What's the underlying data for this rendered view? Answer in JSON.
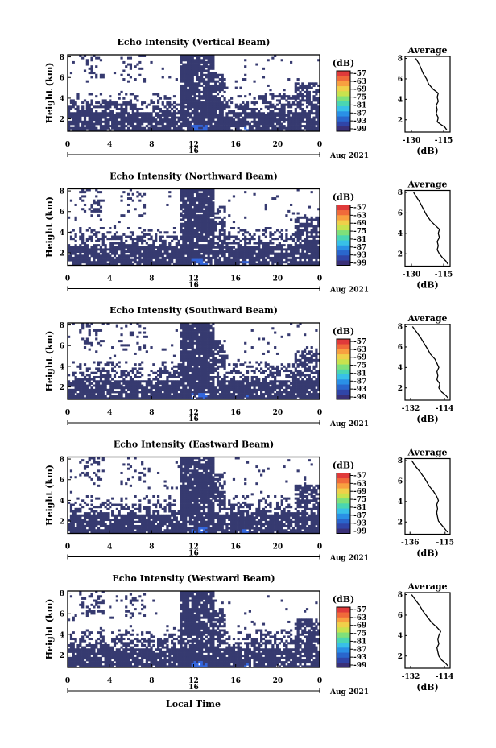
{
  "figure": {
    "xlabel": "Local Time",
    "colorbar_unit": "(dB)",
    "date_label": "Aug 2021",
    "date_tick": "16",
    "avg_title": "Average",
    "avg_xlabel": "(dB)"
  },
  "colors": {
    "background": "#ffffff",
    "echo_base": "#363a70",
    "echo_strong": "#3366dd",
    "colormap": [
      "#3a3078",
      "#3045a8",
      "#2a66cc",
      "#2a90e6",
      "#38c0e8",
      "#4ad6b2",
      "#7fe07a",
      "#c8e24e",
      "#f0d04a",
      "#f8a040",
      "#f06a3a",
      "#e03a3a"
    ]
  },
  "chart_data": [
    {
      "type": "heatmap",
      "title": "Echo Intensity (Vertical Beam)",
      "ylabel": "Height (km)",
      "x_ticks": [
        "0",
        "4",
        "8",
        "12",
        "16",
        "20",
        "0"
      ],
      "y_ticks": [
        "2",
        "4",
        "6",
        "8"
      ],
      "xlim": [
        0,
        24
      ],
      "ylim": [
        0.8,
        8.2
      ],
      "colorbar_ticks": [
        "-57",
        "-63",
        "-69",
        "-75",
        "-81",
        "-87",
        "-93",
        "-99"
      ],
      "average": {
        "title": "Average",
        "xlabel": "(dB)",
        "x_ticks": [
          "-130",
          "-115"
        ],
        "xlim": [
          -133,
          -112
        ],
        "y_ticks": [
          "2",
          "4",
          "6",
          "8"
        ],
        "profile": [
          [
            -113.5,
            1
          ],
          [
            -114.5,
            1.3
          ],
          [
            -116,
            1.5
          ],
          [
            -118,
            1.8
          ],
          [
            -117.5,
            2.2
          ],
          [
            -118.5,
            2.6
          ],
          [
            -118,
            3
          ],
          [
            -118.5,
            3.4
          ],
          [
            -117.5,
            3.8
          ],
          [
            -118,
            4.2
          ],
          [
            -117.5,
            4.6
          ],
          [
            -120,
            5
          ],
          [
            -122,
            5.5
          ],
          [
            -123,
            6
          ],
          [
            -124.5,
            6.5
          ],
          [
            -125.5,
            7
          ],
          [
            -126.5,
            7.5
          ],
          [
            -128,
            8
          ]
        ]
      }
    },
    {
      "type": "heatmap",
      "title": "Echo Intensity (Northward Beam)",
      "ylabel": "Height (km)",
      "x_ticks": [
        "0",
        "4",
        "8",
        "12",
        "16",
        "20",
        "0"
      ],
      "y_ticks": [
        "2",
        "4",
        "6",
        "8"
      ],
      "xlim": [
        0,
        24
      ],
      "ylim": [
        0.8,
        8.2
      ],
      "colorbar_ticks": [
        "-57",
        "-63",
        "-69",
        "-75",
        "-81",
        "-87",
        "-93",
        "-99"
      ],
      "average": {
        "title": "Average",
        "xlabel": "(dB)",
        "x_ticks": [
          "-130",
          "-115"
        ],
        "xlim": [
          -133,
          -112
        ],
        "y_ticks": [
          "2",
          "4",
          "6",
          "8"
        ],
        "profile": [
          [
            -113,
            1
          ],
          [
            -114,
            1.3
          ],
          [
            -115.5,
            1.6
          ],
          [
            -117,
            2
          ],
          [
            -118,
            2.4
          ],
          [
            -117.5,
            2.8
          ],
          [
            -118,
            3.2
          ],
          [
            -117,
            3.6
          ],
          [
            -117.5,
            4
          ],
          [
            -117,
            4.4
          ],
          [
            -119,
            4.8
          ],
          [
            -121,
            5.2
          ],
          [
            -123,
            5.8
          ],
          [
            -124.5,
            6.4
          ],
          [
            -126,
            7
          ],
          [
            -127.5,
            7.5
          ],
          [
            -129,
            8
          ]
        ]
      }
    },
    {
      "type": "heatmap",
      "title": "Echo Intensity (Southward Beam)",
      "ylabel": "Height (km)",
      "x_ticks": [
        "0",
        "4",
        "8",
        "12",
        "16",
        "20",
        "0"
      ],
      "y_ticks": [
        "2",
        "4",
        "6",
        "8"
      ],
      "xlim": [
        0,
        24
      ],
      "ylim": [
        0.8,
        8.2
      ],
      "colorbar_ticks": [
        "-57",
        "-63",
        "-69",
        "-75",
        "-81",
        "-87",
        "-93",
        "-99"
      ],
      "average": {
        "title": "Average",
        "xlabel": "(dB)",
        "x_ticks": [
          "-132",
          "-114"
        ],
        "xlim": [
          -135,
          -111
        ],
        "y_ticks": [
          "2",
          "4",
          "6",
          "8"
        ],
        "profile": [
          [
            -112,
            1
          ],
          [
            -113.5,
            1.3
          ],
          [
            -115.5,
            1.6
          ],
          [
            -117,
            2
          ],
          [
            -116.5,
            2.4
          ],
          [
            -118,
            2.8
          ],
          [
            -117.5,
            3.2
          ],
          [
            -118,
            3.6
          ],
          [
            -117,
            4
          ],
          [
            -118,
            4.4
          ],
          [
            -119,
            4.8
          ],
          [
            -121.5,
            5.3
          ],
          [
            -123,
            5.8
          ],
          [
            -125,
            6.4
          ],
          [
            -127,
            7
          ],
          [
            -129,
            7.5
          ],
          [
            -131,
            8
          ]
        ]
      }
    },
    {
      "type": "heatmap",
      "title": "Echo Intensity (Eastward Beam)",
      "ylabel": "Height (km)",
      "x_ticks": [
        "0",
        "4",
        "8",
        "12",
        "16",
        "20",
        "0"
      ],
      "y_ticks": [
        "2",
        "4",
        "6",
        "8"
      ],
      "xlim": [
        0,
        24
      ],
      "ylim": [
        0.8,
        8.2
      ],
      "colorbar_ticks": [
        "-57",
        "-63",
        "-69",
        "-75",
        "-81",
        "-87",
        "-93",
        "-99"
      ],
      "average": {
        "title": "Average",
        "xlabel": "(dB)",
        "x_ticks": [
          "-136",
          "-115"
        ],
        "xlim": [
          -139,
          -112
        ],
        "y_ticks": [
          "2",
          "4",
          "6",
          "8"
        ],
        "profile": [
          [
            -113.5,
            1
          ],
          [
            -115,
            1.3
          ],
          [
            -117,
            1.7
          ],
          [
            -119,
            2.1
          ],
          [
            -119.5,
            2.5
          ],
          [
            -120,
            2.9
          ],
          [
            -119.5,
            3.3
          ],
          [
            -120,
            3.7
          ],
          [
            -119,
            4.1
          ],
          [
            -120,
            4.5
          ],
          [
            -122,
            5
          ],
          [
            -124.5,
            5.5
          ],
          [
            -127,
            6.2
          ],
          [
            -130,
            6.9
          ],
          [
            -132.5,
            7.4
          ],
          [
            -135,
            8
          ]
        ]
      }
    },
    {
      "type": "heatmap",
      "title": "Echo Intensity (Westward Beam)",
      "ylabel": "Height (km)",
      "x_ticks": [
        "0",
        "4",
        "8",
        "12",
        "16",
        "20",
        "0"
      ],
      "y_ticks": [
        "2",
        "4",
        "6",
        "8"
      ],
      "xlim": [
        0,
        24
      ],
      "ylim": [
        0.8,
        8.2
      ],
      "colorbar_ticks": [
        "-57",
        "-63",
        "-69",
        "-75",
        "-81",
        "-87",
        "-93",
        "-99"
      ],
      "average": {
        "title": "Average",
        "xlabel": "(dB)",
        "x_ticks": [
          "-132",
          "-114"
        ],
        "xlim": [
          -135,
          -111
        ],
        "y_ticks": [
          "2",
          "4",
          "6",
          "8"
        ],
        "profile": [
          [
            -112,
            1
          ],
          [
            -113.5,
            1.3
          ],
          [
            -115.5,
            1.6
          ],
          [
            -117,
            2
          ],
          [
            -117.5,
            2.4
          ],
          [
            -118,
            2.8
          ],
          [
            -117,
            3.2
          ],
          [
            -117.5,
            3.6
          ],
          [
            -117,
            4
          ],
          [
            -116,
            4.4
          ],
          [
            -118,
            4.8
          ],
          [
            -121,
            5.3
          ],
          [
            -123,
            5.8
          ],
          [
            -125.5,
            6.4
          ],
          [
            -127.5,
            7
          ],
          [
            -129.5,
            7.5
          ],
          [
            -131.5,
            8
          ]
        ]
      }
    }
  ]
}
